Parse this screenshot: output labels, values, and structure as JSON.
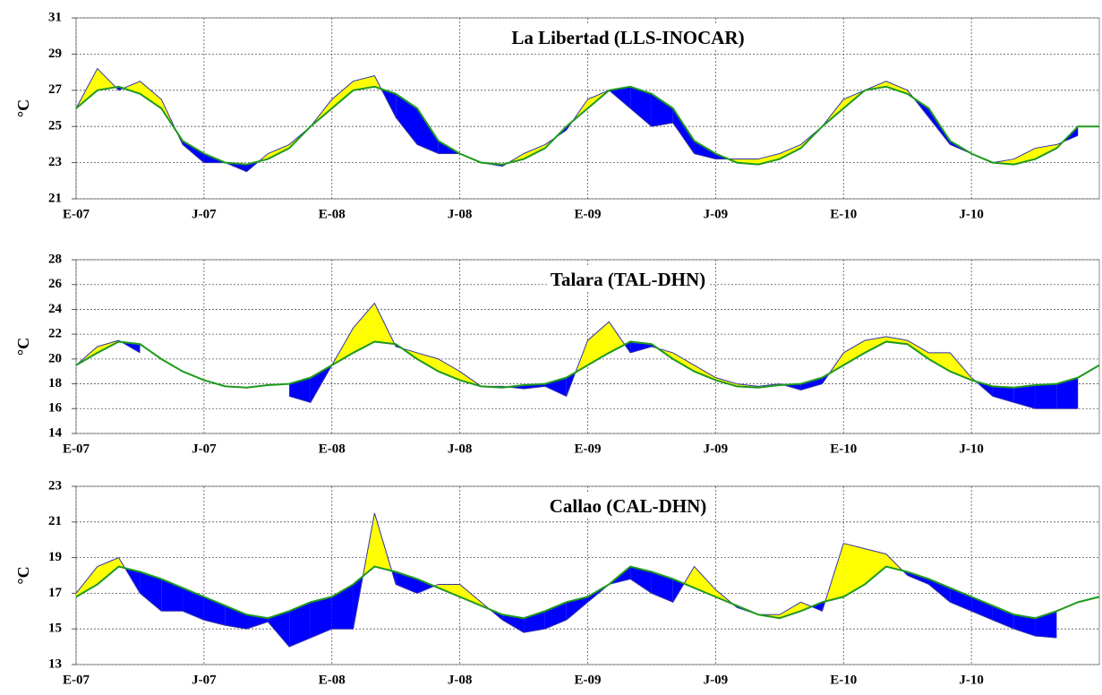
{
  "chart_data": [
    {
      "type": "line",
      "title": "La Libertad (LLS-INOCAR)",
      "ylabel": "°C",
      "categories": [
        "E-07",
        null,
        null,
        null,
        null,
        null,
        "J-07",
        null,
        null,
        null,
        null,
        null,
        "E-08",
        null,
        null,
        null,
        null,
        null,
        "J-08",
        null,
        null,
        null,
        null,
        null,
        "E-09",
        null,
        null,
        null,
        null,
        null,
        "J-09",
        null,
        null,
        null,
        null,
        null,
        "E-10",
        null,
        null,
        null,
        null,
        null,
        "J-10",
        null,
        null,
        null,
        null,
        null,
        null
      ],
      "ylim": [
        21,
        31
      ],
      "yticks": [
        21,
        23,
        25,
        27,
        29,
        31
      ],
      "grid": true,
      "fill_above_color": "#ffff00",
      "fill_below_color": "#0000ff",
      "series": [
        {
          "color": "#3333aa",
          "values": [
            26,
            28.2,
            27,
            27.5,
            26.5,
            24,
            23,
            23,
            22.5,
            23.5,
            24,
            25,
            26.5,
            27.5,
            27.8,
            25.5,
            24,
            23.5,
            23.5,
            23,
            22.8,
            23.5,
            24,
            24.8,
            26.5,
            27,
            26,
            25,
            25.2,
            23.5,
            23.2,
            23.2,
            23.2,
            23.5,
            24,
            25,
            26.5,
            27,
            27.5,
            27,
            25.5,
            24,
            23.5,
            23,
            23.2,
            23.8,
            24,
            24.5,
            null
          ]
        },
        {
          "color": "#1e9a1e",
          "values": [
            26,
            27,
            27.2,
            26.8,
            26,
            24.2,
            23.5,
            23,
            22.9,
            23.2,
            23.8,
            25,
            26,
            27,
            27.2,
            26.8,
            26,
            24.2,
            23.5,
            23,
            22.9,
            23.2,
            23.8,
            25,
            26,
            27,
            27.2,
            26.8,
            26,
            24.2,
            23.5,
            23,
            22.9,
            23.2,
            23.8,
            25,
            26,
            27,
            27.2,
            26.8,
            26,
            24.2,
            23.5,
            23,
            22.9,
            23.2,
            23.8,
            25,
            25
          ]
        }
      ]
    },
    {
      "type": "line",
      "title": "Talara (TAL-DHN)",
      "ylabel": "°C",
      "categories": [
        "E-07",
        null,
        null,
        null,
        null,
        null,
        "J-07",
        null,
        null,
        null,
        null,
        null,
        "E-08",
        null,
        null,
        null,
        null,
        null,
        "J-08",
        null,
        null,
        null,
        null,
        null,
        "E-09",
        null,
        null,
        null,
        null,
        null,
        "J-09",
        null,
        null,
        null,
        null,
        null,
        "E-10",
        null,
        null,
        null,
        null,
        null,
        "J-10",
        null,
        null,
        null,
        null,
        null,
        null
      ],
      "ylim": [
        14,
        28
      ],
      "yticks": [
        14,
        16,
        18,
        20,
        22,
        24,
        26,
        28
      ],
      "grid": true,
      "fill_above_color": "#ffff00",
      "fill_below_color": "#0000ff",
      "series": [
        {
          "color": "#3333aa",
          "values": [
            19.5,
            21,
            21.5,
            20.5,
            null,
            null,
            null,
            null,
            null,
            null,
            17,
            16.5,
            19.5,
            22.5,
            24.5,
            21,
            20.5,
            20,
            19,
            17.8,
            17.8,
            17.6,
            17.8,
            17,
            21.5,
            23,
            20.5,
            21,
            20.5,
            19.5,
            18.5,
            18,
            17.8,
            18,
            17.5,
            18,
            20.5,
            21.5,
            21.8,
            21.5,
            20.5,
            20.5,
            18.5,
            17,
            16.5,
            16,
            16,
            16,
            null
          ]
        },
        {
          "color": "#1e9a1e",
          "values": [
            19.5,
            20.5,
            21.4,
            21.2,
            20,
            19,
            18.3,
            17.8,
            17.7,
            17.9,
            18,
            18.5,
            19.5,
            20.5,
            21.4,
            21.2,
            20,
            19,
            18.3,
            17.8,
            17.7,
            17.9,
            18,
            18.5,
            19.5,
            20.5,
            21.4,
            21.2,
            20,
            19,
            18.3,
            17.8,
            17.7,
            17.9,
            18,
            18.5,
            19.5,
            20.5,
            21.4,
            21.2,
            20,
            19,
            18.3,
            17.8,
            17.7,
            17.9,
            18,
            18.5,
            19.5
          ]
        }
      ]
    },
    {
      "type": "line",
      "title": "Callao (CAL-DHN)",
      "ylabel": "°C",
      "categories": [
        "E-07",
        null,
        null,
        null,
        null,
        null,
        "J-07",
        null,
        null,
        null,
        null,
        null,
        "E-08",
        null,
        null,
        null,
        null,
        null,
        "J-08",
        null,
        null,
        null,
        null,
        null,
        "E-09",
        null,
        null,
        null,
        null,
        null,
        "J-09",
        null,
        null,
        null,
        null,
        null,
        "E-10",
        null,
        null,
        null,
        null,
        null,
        "J-10",
        null,
        null,
        null,
        null,
        null,
        null
      ],
      "ylim": [
        13,
        23
      ],
      "yticks": [
        13,
        15,
        17,
        19,
        21,
        23
      ],
      "grid": true,
      "fill_above_color": "#ffff00",
      "fill_below_color": "#0000ff",
      "series": [
        {
          "color": "#3333aa",
          "values": [
            17,
            18.5,
            19,
            17,
            16,
            16,
            15.5,
            15.2,
            15,
            15.4,
            14,
            14.5,
            15,
            15,
            21.5,
            17.5,
            17,
            17.5,
            17.5,
            16.5,
            15.5,
            14.8,
            15,
            15.5,
            16.5,
            17.5,
            17.8,
            17,
            16.5,
            18.5,
            17.2,
            16.2,
            15.8,
            15.8,
            16.5,
            16,
            19.8,
            19.5,
            19.2,
            18,
            17.5,
            16.5,
            16,
            15.5,
            15,
            14.6,
            14.5,
            null,
            null
          ]
        },
        {
          "color": "#1e9a1e",
          "values": [
            16.8,
            17.5,
            18.5,
            18.2,
            17.8,
            17.3,
            16.8,
            16.3,
            15.8,
            15.6,
            16,
            16.5,
            16.8,
            17.5,
            18.5,
            18.2,
            17.8,
            17.3,
            16.8,
            16.3,
            15.8,
            15.6,
            16,
            16.5,
            16.8,
            17.5,
            18.5,
            18.2,
            17.8,
            17.3,
            16.8,
            16.3,
            15.8,
            15.6,
            16,
            16.5,
            16.8,
            17.5,
            18.5,
            18.2,
            17.8,
            17.3,
            16.8,
            16.3,
            15.8,
            15.6,
            16,
            16.5,
            16.8
          ]
        }
      ]
    }
  ]
}
